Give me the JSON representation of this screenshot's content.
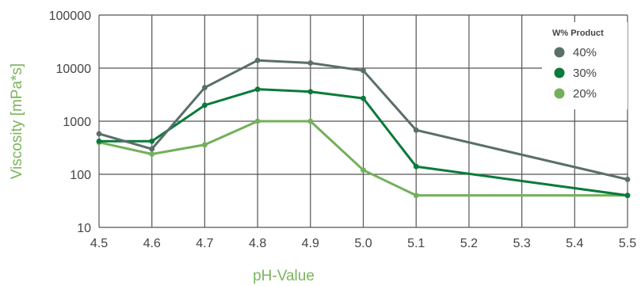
{
  "chart_data": {
    "type": "line",
    "title": "",
    "xlabel": "pH-Value",
    "ylabel": "Viscosity [mPa*s]",
    "x": [
      4.5,
      4.6,
      4.7,
      4.8,
      4.9,
      5.0,
      5.1,
      5.5
    ],
    "x_ticks": [
      "4.5",
      "4.6",
      "4.7",
      "4.8",
      "4.9",
      "5.0",
      "5.1",
      "5.2",
      "5.3",
      "5.4",
      "5.5"
    ],
    "y_ticks": [
      "100000",
      "10000",
      "1000",
      "100",
      "10"
    ],
    "xlim": [
      4.5,
      5.5
    ],
    "ylim": [
      10,
      100000
    ],
    "yscale": "log",
    "grid": true,
    "legend": {
      "title": "W% Product",
      "position": "top-right"
    },
    "series": [
      {
        "name": "40%",
        "color": "#5a6e6a",
        "values": [
          580,
          300,
          4300,
          14000,
          12500,
          9000,
          680,
          80
        ]
      },
      {
        "name": "30%",
        "color": "#0a7a3a",
        "values": [
          420,
          420,
          2000,
          4000,
          3600,
          2700,
          140,
          40
        ]
      },
      {
        "name": "20%",
        "color": "#72b05a",
        "values": [
          400,
          240,
          360,
          1000,
          1000,
          120,
          40,
          40
        ]
      }
    ]
  }
}
